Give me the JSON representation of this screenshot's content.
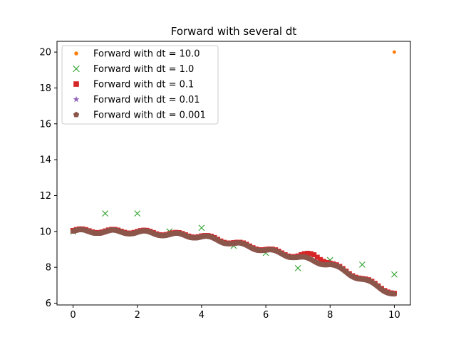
{
  "chart_data": {
    "type": "scatter",
    "title": "Forward with several dt",
    "xlabel": "",
    "ylabel": "",
    "xlim": [
      -0.5,
      10.5
    ],
    "ylim": [
      5.9,
      20.6
    ],
    "xticks": [
      0,
      2,
      4,
      6,
      8,
      10
    ],
    "yticks": [
      6,
      8,
      10,
      12,
      14,
      16,
      18,
      20
    ],
    "grid": false,
    "legend_position": "top-left",
    "series": [
      {
        "name": "Forward with dt = 10.0",
        "marker": "dot",
        "color": "#ff7f0e",
        "x": [
          0,
          10
        ],
        "y": [
          10.0,
          20.0
        ]
      },
      {
        "name": "Forward with dt = 1.0",
        "marker": "x",
        "color": "#2ca02c",
        "x": [
          0,
          1,
          2,
          3,
          4,
          5,
          6,
          7,
          8,
          9,
          10
        ],
        "y": [
          10.0,
          11.0,
          11.0,
          10.0,
          10.2,
          9.2,
          8.8,
          7.95,
          8.4,
          8.15,
          7.6
        ]
      },
      {
        "name": "Forward with dt = 0.1",
        "marker": "square",
        "color": "#d62728",
        "model": {
          "t0": 0,
          "t1": 10,
          "dt": 0.1,
          "base": [
            [
              0,
              10.05
            ],
            [
              2,
              10.0
            ],
            [
              4,
              9.75
            ],
            [
              6,
              9.0
            ],
            [
              7,
              8.6
            ],
            [
              7.5,
              8.55
            ],
            [
              8,
              8.2
            ],
            [
              10,
              6.55
            ]
          ],
          "amp": 0.1,
          "period": 1.0,
          "extra_bump": {
            "center": 7.5,
            "width": 0.4,
            "height": 0.15
          }
        }
      },
      {
        "name": "Forward with dt = 0.01",
        "marker": "star",
        "color": "#9467bd",
        "model": {
          "t0": 0,
          "t1": 10,
          "dt": 0.02,
          "base": [
            [
              0,
              10.0
            ],
            [
              2,
              9.95
            ],
            [
              4,
              9.7
            ],
            [
              6,
              8.95
            ],
            [
              7,
              8.55
            ],
            [
              8,
              8.15
            ],
            [
              10,
              6.5
            ]
          ],
          "amp": 0.1,
          "period": 1.0
        }
      },
      {
        "name": "Forward with dt = 0.001",
        "marker": "pentagon",
        "color": "#8c564b",
        "model": {
          "t0": 0,
          "t1": 10,
          "dt": 0.02,
          "base": [
            [
              0,
              10.0
            ],
            [
              2,
              9.95
            ],
            [
              4,
              9.7
            ],
            [
              6,
              8.95
            ],
            [
              7,
              8.55
            ],
            [
              8,
              8.15
            ],
            [
              10,
              6.5
            ]
          ],
          "amp": 0.1,
          "period": 1.0
        }
      }
    ]
  }
}
